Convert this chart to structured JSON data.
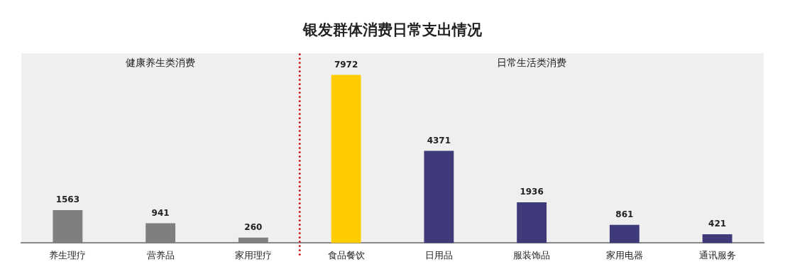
{
  "chart_data": {
    "type": "bar",
    "title": "银发群体消费日常支出情况",
    "categories": [
      "养生理疗",
      "营养品",
      "家用理疗",
      "食品餐饮",
      "日用品",
      "服装饰品",
      "家用电器",
      "通讯服务"
    ],
    "values": [
      1563,
      941,
      260,
      7972,
      4371,
      1936,
      861,
      421
    ],
    "colors": [
      "#7f7f7f",
      "#7f7f7f",
      "#7f7f7f",
      "#ffcc00",
      "#3f3a7a",
      "#3f3a7a",
      "#3f3a7a",
      "#3f3a7a"
    ],
    "data_labels": true,
    "annotations": [
      "健康养生类消费",
      "日常生活类消费"
    ]
  }
}
